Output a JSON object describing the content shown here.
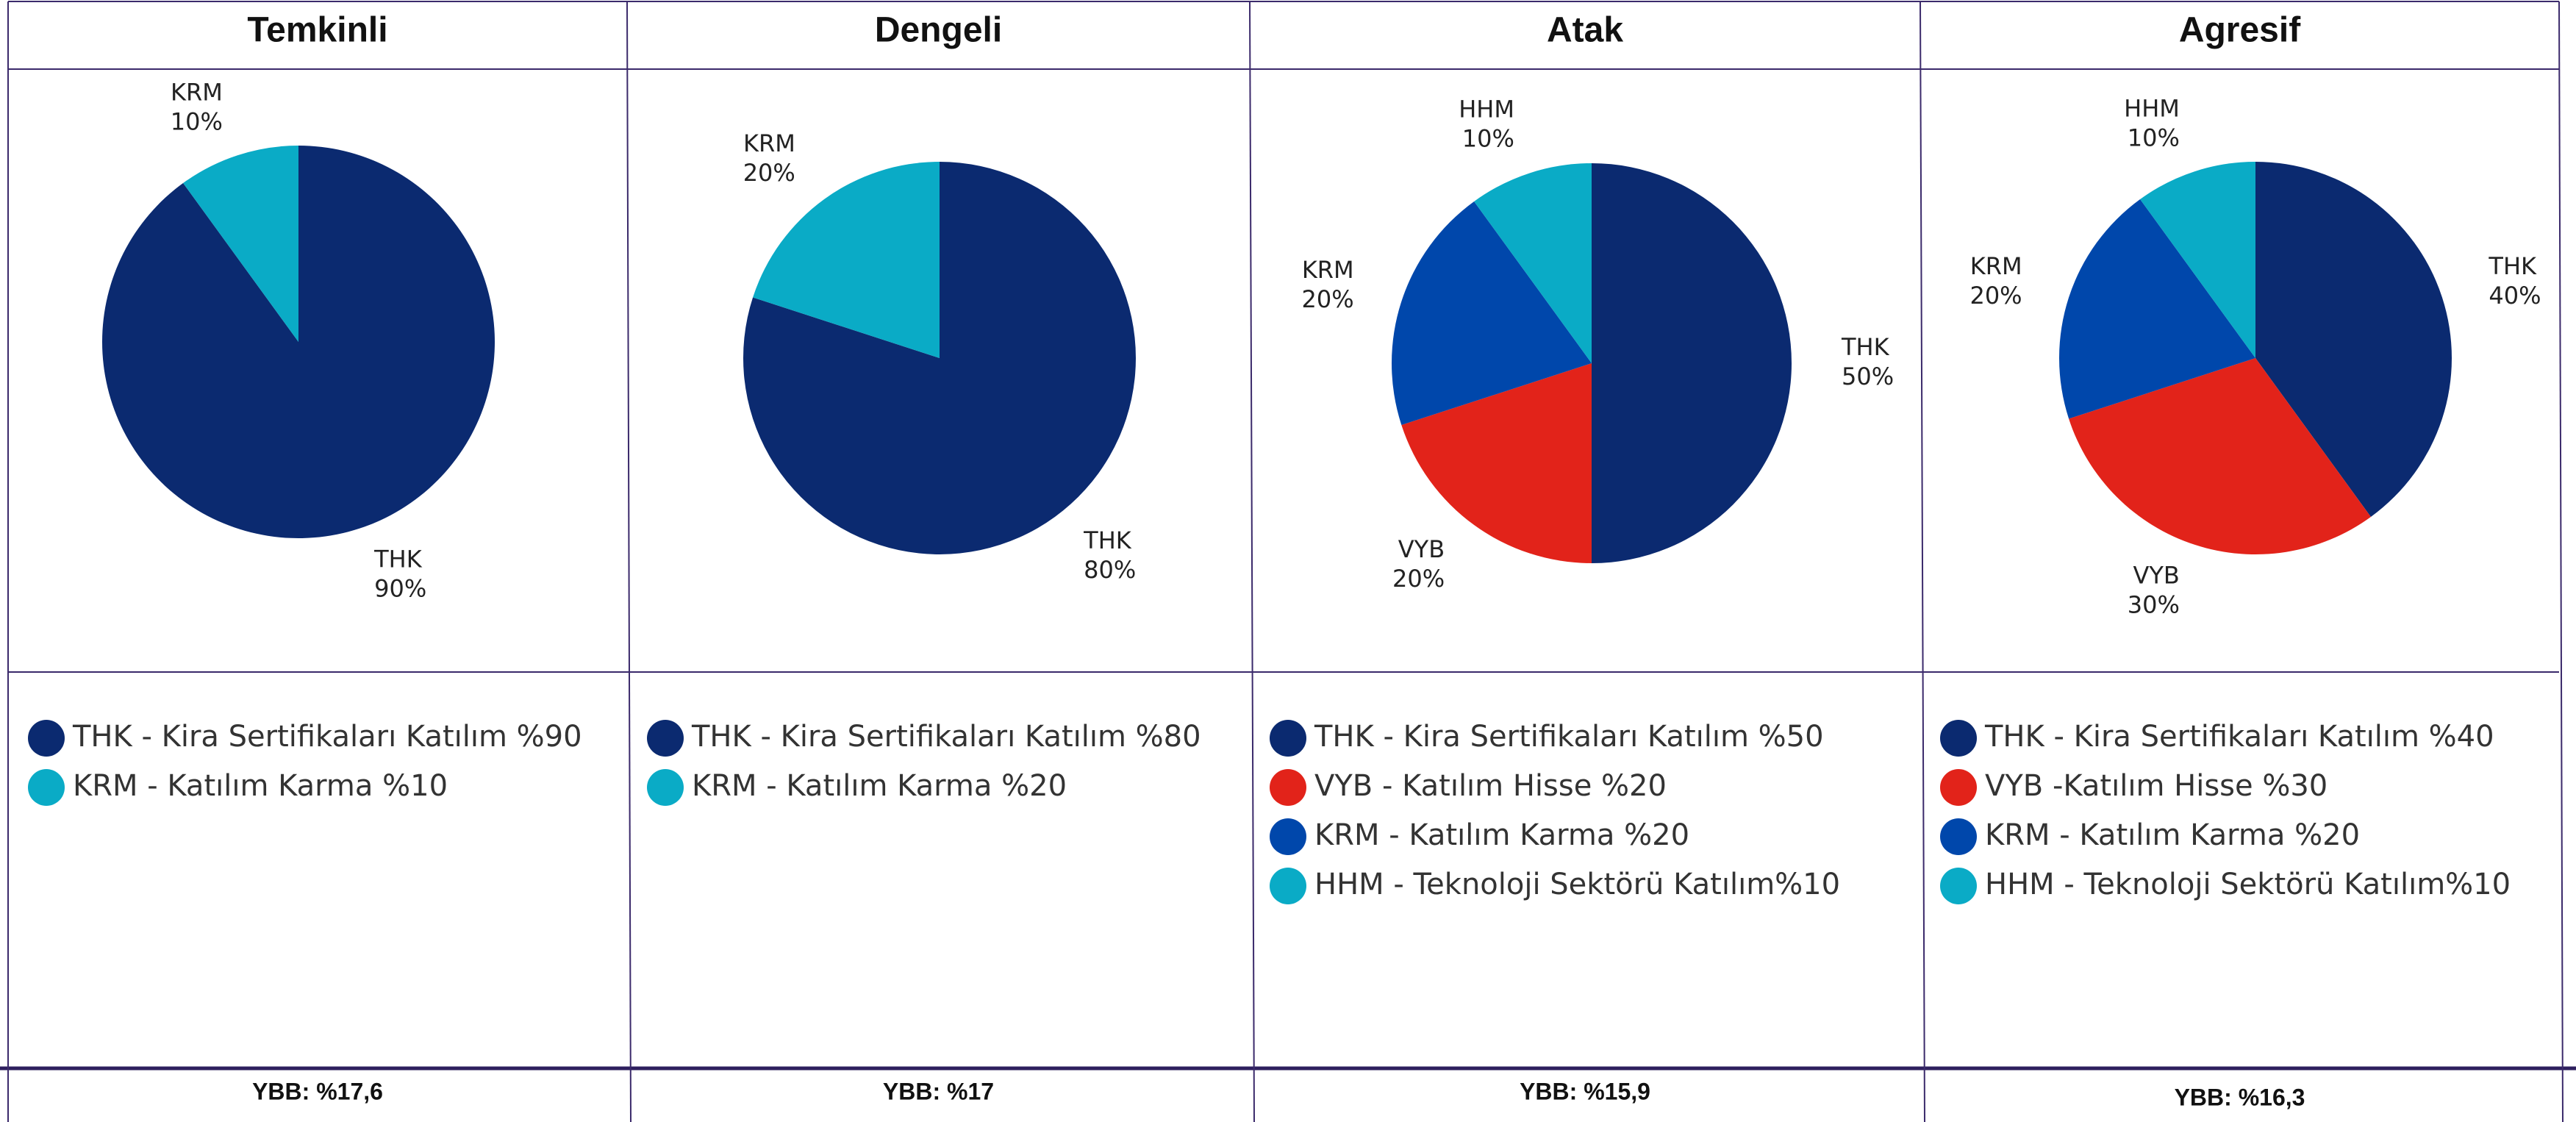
{
  "chart_data": [
    {
      "type": "pie",
      "title": "Temkinli",
      "categories": [
        "THK",
        "KRM"
      ],
      "values": [
        90,
        10
      ],
      "value_labels": [
        "90%",
        "10%"
      ],
      "colors": [
        "#0b2a70",
        "#0aabc6"
      ],
      "legend": [
        "THK - Kira Sertifikaları Katılım %90",
        "KRM - Katılım Karma %10"
      ],
      "footer": "YBB: %17,6"
    },
    {
      "type": "pie",
      "title": "Dengeli",
      "categories": [
        "THK",
        "KRM"
      ],
      "values": [
        80,
        20
      ],
      "value_labels": [
        "80%",
        "20%"
      ],
      "colors": [
        "#0b2a70",
        "#0aabc6"
      ],
      "legend": [
        "THK - Kira Sertifikaları Katılım %80",
        "KRM - Katılım Karma %20"
      ],
      "footer": "YBB: %17"
    },
    {
      "type": "pie",
      "title": "Atak",
      "categories": [
        "THK",
        "VYB",
        "KRM",
        "HHM"
      ],
      "values": [
        50,
        20,
        20,
        10
      ],
      "value_labels": [
        "50%",
        "20%",
        "20%",
        "10%"
      ],
      "colors": [
        "#0b2a70",
        "#e2231a",
        "#0047ab",
        "#0aabc6"
      ],
      "legend": [
        "THK - Kira Sertifikaları Katılım %50",
        "VYB - Katılım Hisse %20",
        "KRM - Katılım Karma %20",
        "HHM - Teknoloji Sektörü Katılım%10"
      ],
      "footer": "YBB: %15,9"
    },
    {
      "type": "pie",
      "title": "Agresif",
      "categories": [
        "THK",
        "VYB",
        "KRM",
        "HHM"
      ],
      "values": [
        40,
        30,
        20,
        10
      ],
      "value_labels": [
        "40%",
        "30%",
        "20%",
        "10%"
      ],
      "colors": [
        "#0b2a70",
        "#e2231a",
        "#0047ab",
        "#0aabc6"
      ],
      "legend": [
        "THK - Kira Sertifikaları Katılım %40",
        "VYB -Katılım Hisse %30",
        "KRM - Katılım Karma %20",
        "HHM - Teknoloji Sektörü Katılım%10"
      ],
      "footer": "YBB: %16,3"
    }
  ]
}
